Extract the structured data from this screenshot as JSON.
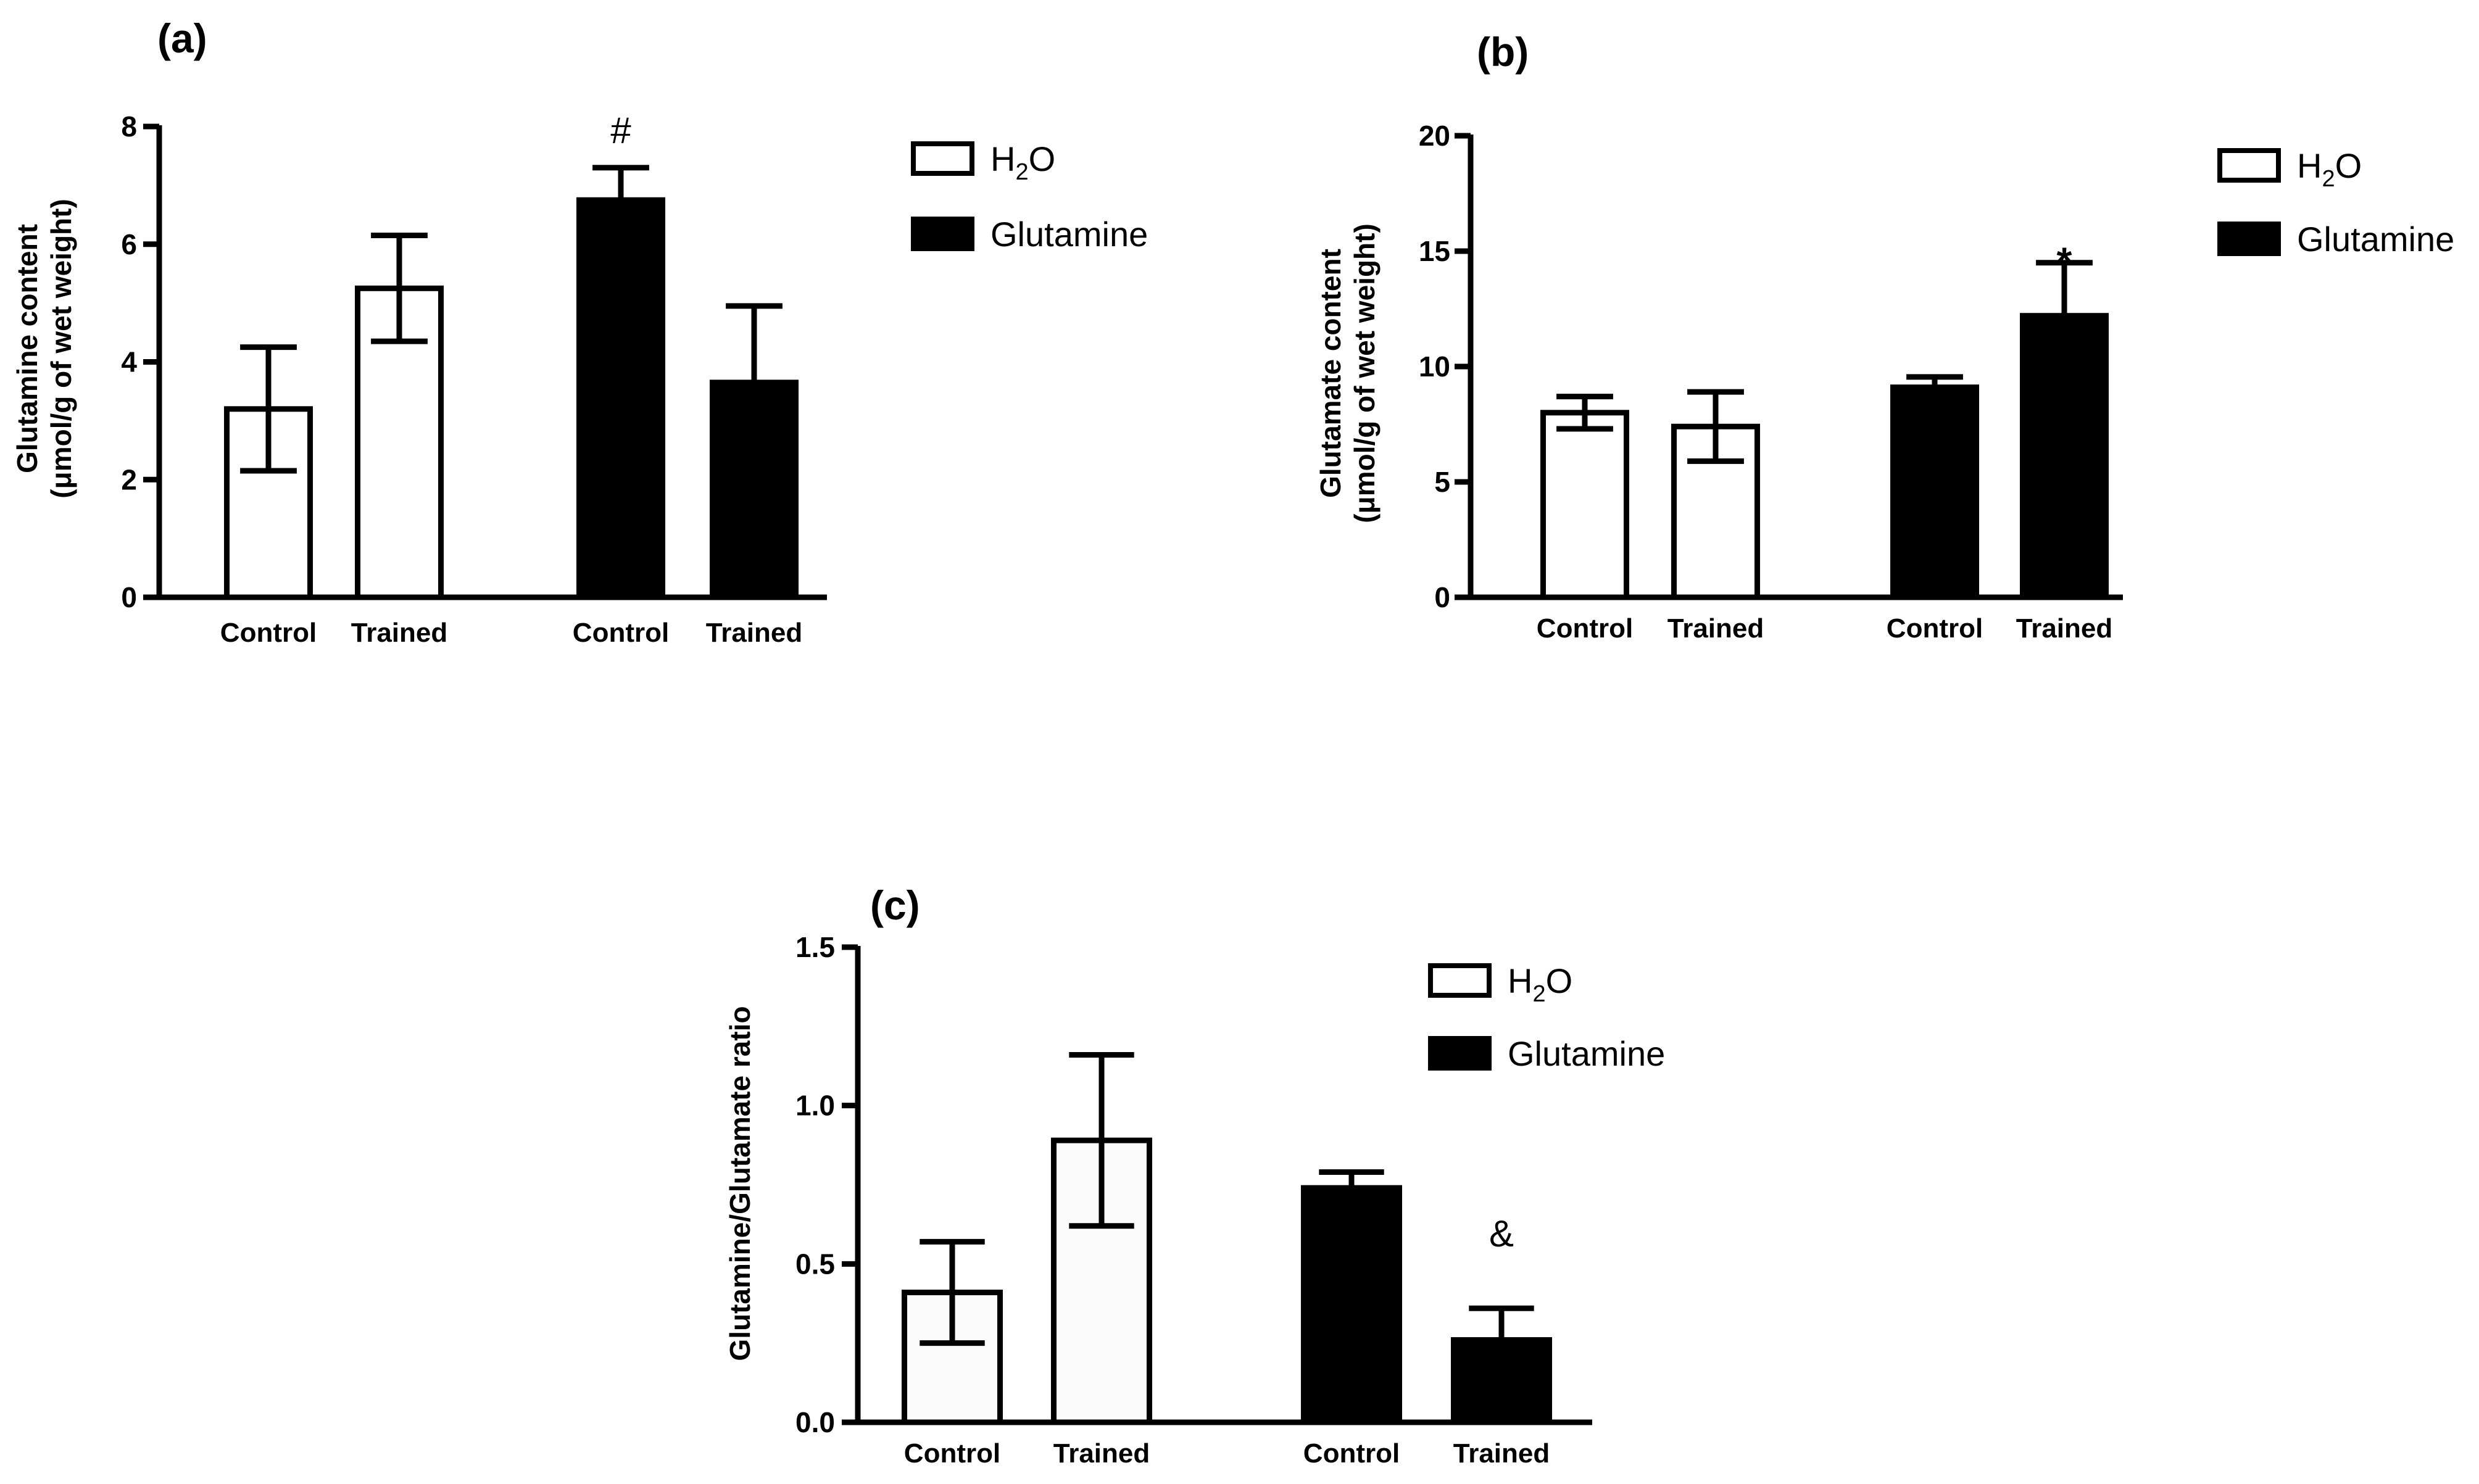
{
  "chart_data": [
    {
      "type": "bar",
      "panel": "(a)",
      "ylabel_line1": "Glutamine content",
      "ylabel_line2": "(μmol/g of wet weight)",
      "ylim": [
        0,
        8
      ],
      "yticks": [
        "0",
        "2",
        "4",
        "6",
        "8"
      ],
      "categories": [
        "Control",
        "Trained",
        "Control",
        "Trained"
      ],
      "groups": [
        "H2O",
        "H2O",
        "Glutamine",
        "Glutamine"
      ],
      "values": [
        3.2,
        5.25,
        6.75,
        3.65
      ],
      "errors": [
        1.05,
        0.9,
        0.55,
        1.3
      ],
      "annotations": [
        {
          "bar": 2,
          "text": "#"
        }
      ],
      "legend": [
        {
          "name": "H2O",
          "label_main": "H",
          "label_sub": "2",
          "label_tail": "O",
          "fill": "#ffffff"
        },
        {
          "name": "Glutamine",
          "label": "Glutamine",
          "fill": "#000000"
        }
      ]
    },
    {
      "type": "bar",
      "panel": "(b)",
      "ylabel_line1": "Glutamate content",
      "ylabel_line2": "(μmol/g of wet weight)",
      "ylim": [
        0,
        20
      ],
      "yticks": [
        "0",
        "5",
        "10",
        "15",
        "20"
      ],
      "categories": [
        "Control",
        "Trained",
        "Control",
        "Trained"
      ],
      "groups": [
        "H2O",
        "H2O",
        "Glutamine",
        "Glutamine"
      ],
      "values": [
        8.0,
        7.4,
        9.1,
        12.2
      ],
      "errors": [
        0.7,
        1.5,
        0.45,
        2.3
      ],
      "annotations": [
        {
          "bar": 3,
          "text": "*"
        }
      ],
      "legend": [
        {
          "name": "H2O",
          "label_main": "H",
          "label_sub": "2",
          "label_tail": "O",
          "fill": "#ffffff"
        },
        {
          "name": "Glutamine",
          "label": "Glutamine",
          "fill": "#000000"
        }
      ]
    },
    {
      "type": "bar",
      "panel": "(c)",
      "ylabel_line1": "Glutamine/Glutamate ratio",
      "ylim": [
        0,
        1.5
      ],
      "yticks": [
        "0.0",
        "0.5",
        "1.0",
        "1.5"
      ],
      "categories": [
        "Control",
        "Trained",
        "Control",
        "Trained"
      ],
      "groups": [
        "H2O",
        "H2O",
        "Glutamine",
        "Glutamine"
      ],
      "values": [
        0.41,
        0.89,
        0.74,
        0.26
      ],
      "errors": [
        0.16,
        0.27,
        0.05,
        0.1
      ],
      "annotations": [
        {
          "bar": 3,
          "text": "&"
        }
      ],
      "legend": [
        {
          "name": "H2O",
          "label_main": "H",
          "label_sub": "2",
          "label_tail": "O",
          "fill": "#ffffff"
        },
        {
          "name": "Glutamine",
          "label": "Glutamine",
          "fill": "#000000"
        }
      ]
    }
  ]
}
